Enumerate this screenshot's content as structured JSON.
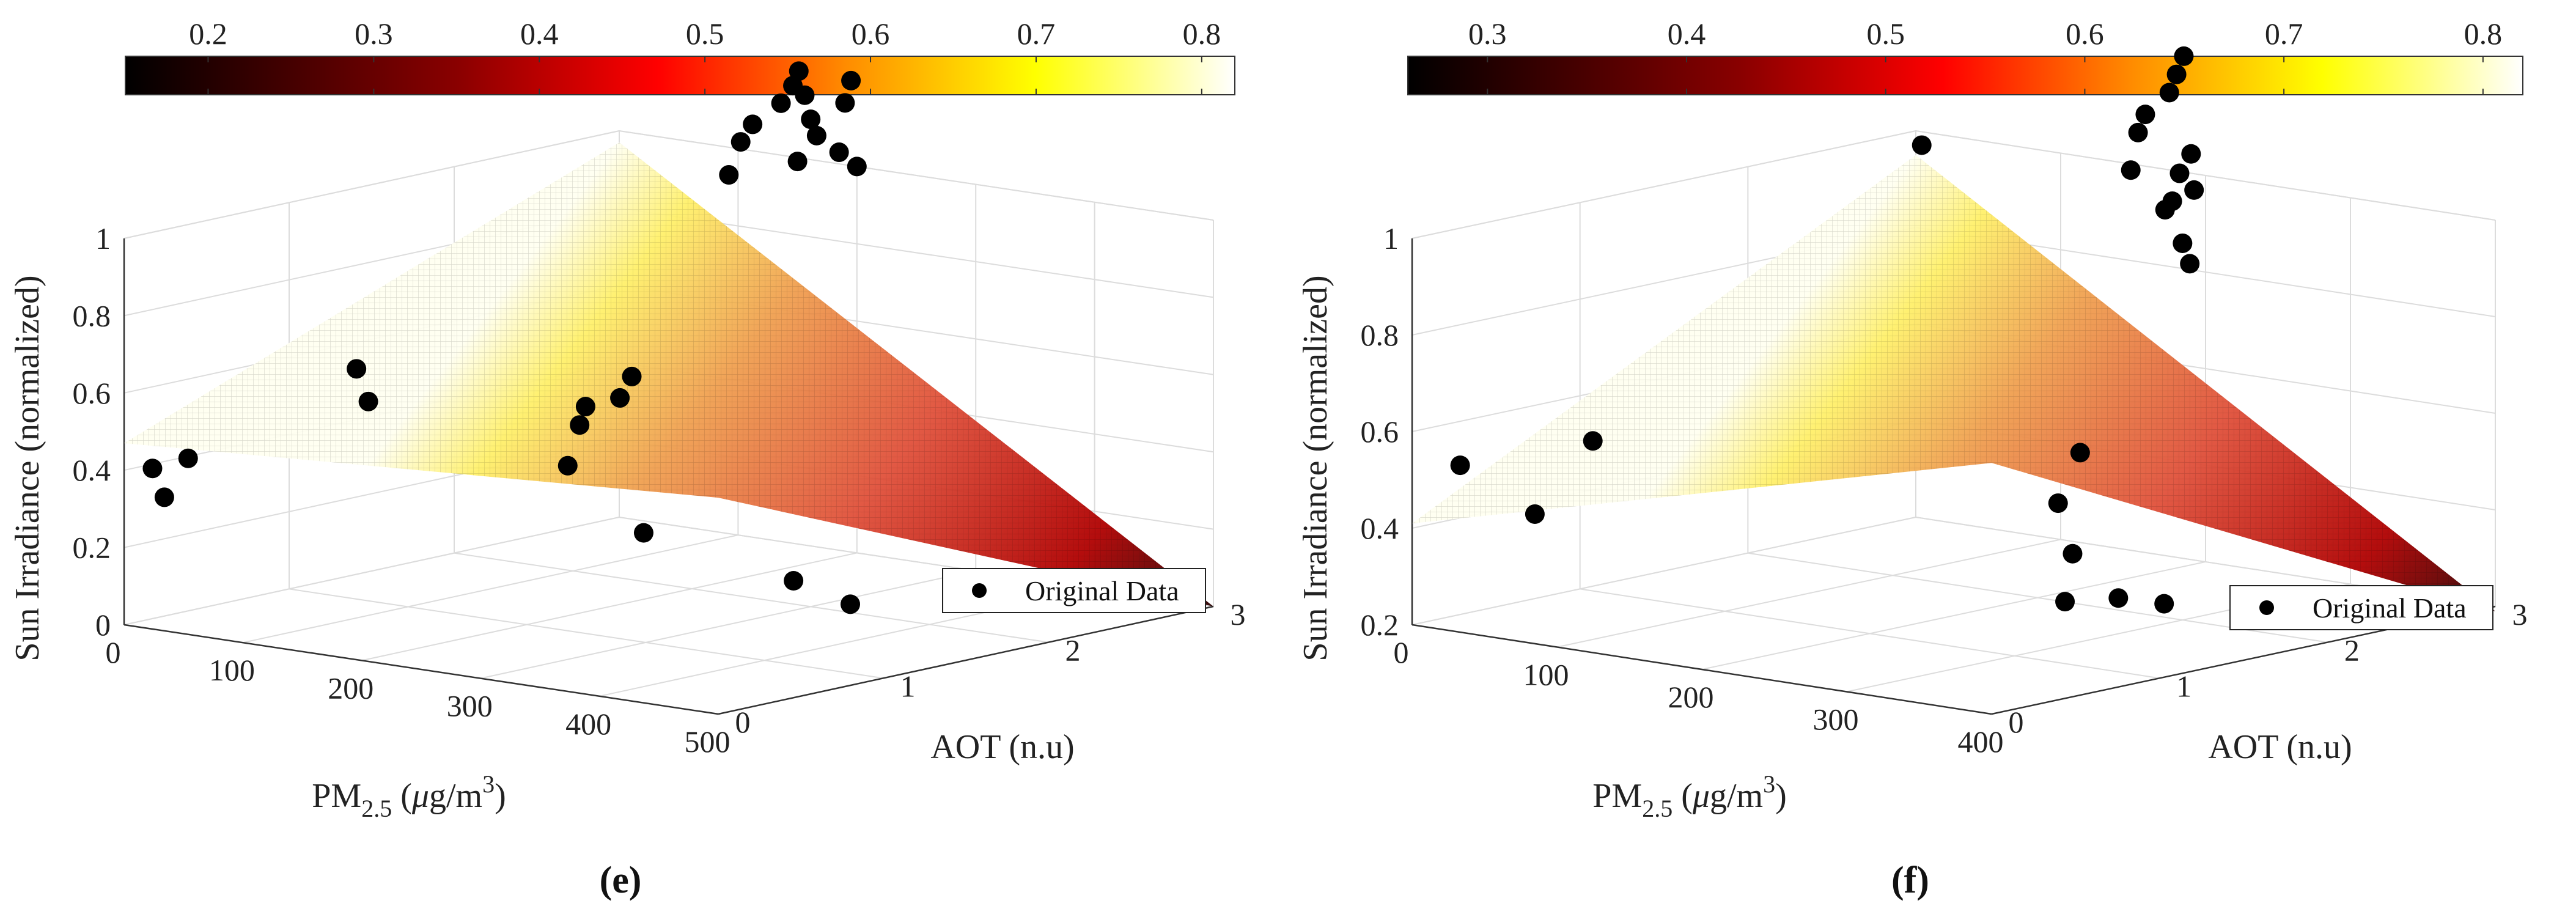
{
  "chart_data": [
    {
      "panel": "(e)",
      "type": "surface3d-scatter",
      "xlabel": {
        "base": "PM",
        "sub": "2.5",
        "rest": " (",
        "mu": "μ",
        "unit": "g/m",
        "sup": "3",
        "close": ")"
      },
      "ylabel": "AOT (n.u)",
      "zlabel": "Sun Irradiance (normalized)",
      "x_ticks": [
        "0",
        "100",
        "200",
        "300",
        "400",
        "500"
      ],
      "y_ticks": [
        "0",
        "1",
        "2",
        "3"
      ],
      "z_ticks": [
        "0",
        "0.2",
        "0.4",
        "0.6",
        "0.8",
        "1"
      ],
      "xlim": [
        0,
        500
      ],
      "ylim": [
        0,
        3
      ],
      "zlim": [
        0,
        1
      ],
      "colorbar": {
        "ticks": [
          "0.2",
          "0.3",
          "0.4",
          "0.5",
          "0.6",
          "0.7",
          "0.8"
        ],
        "range": [
          0.15,
          0.82
        ]
      },
      "surface_z_corners": {
        "x0_y0": 0.47,
        "x500_y0": 0.56,
        "x500_y3": 0.0,
        "x0_y3": 0.97
      },
      "legend": "Original Data",
      "points": [
        {
          "x": 10,
          "y": 0.1,
          "z": 0.4
        },
        {
          "x": 20,
          "y": 0.1,
          "z": 0.33
        },
        {
          "x": 40,
          "y": 0.1,
          "z": 0.44
        },
        {
          "x": 140,
          "y": 0.4,
          "z": 0.69
        },
        {
          "x": 150,
          "y": 0.4,
          "z": 0.61
        },
        {
          "x": 290,
          "y": 0.6,
          "z": 0.49
        },
        {
          "x": 300,
          "y": 0.6,
          "z": 0.6
        },
        {
          "x": 305,
          "y": 0.6,
          "z": 0.65
        },
        {
          "x": 320,
          "y": 0.7,
          "z": 0.67
        },
        {
          "x": 330,
          "y": 0.7,
          "z": 0.73
        },
        {
          "x": 340,
          "y": 0.7,
          "z": 0.33
        },
        {
          "x": 480,
          "y": 0.6,
          "z": 0.28
        },
        {
          "x": 500,
          "y": 0.8,
          "z": 0.21
        },
        {
          "x": 120,
          "y": 2.8,
          "z": 0.96
        },
        {
          "x": 130,
          "y": 2.8,
          "z": 1.05
        },
        {
          "x": 140,
          "y": 2.8,
          "z": 1.1
        },
        {
          "x": 150,
          "y": 2.9,
          "z": 1.15
        },
        {
          "x": 160,
          "y": 2.9,
          "z": 1.2
        },
        {
          "x": 165,
          "y": 2.9,
          "z": 1.24
        },
        {
          "x": 170,
          "y": 2.9,
          "z": 1.18
        },
        {
          "x": 175,
          "y": 2.9,
          "z": 1.12
        },
        {
          "x": 180,
          "y": 2.9,
          "z": 1.08
        },
        {
          "x": 185,
          "y": 3.0,
          "z": 1.03
        },
        {
          "x": 190,
          "y": 3.0,
          "z": 1.16
        },
        {
          "x": 195,
          "y": 3.0,
          "z": 1.22
        },
        {
          "x": 200,
          "y": 3.0,
          "z": 1.0
        },
        {
          "x": 150,
          "y": 3.0,
          "z": 0.99
        }
      ]
    },
    {
      "panel": "(f)",
      "type": "surface3d-scatter",
      "xlabel": {
        "base": "PM",
        "sub": "2.5",
        "rest": " (",
        "mu": "μ",
        "unit": "g/m",
        "sup": "3",
        "close": ")"
      },
      "ylabel": "AOT (n.u)",
      "zlabel": "Sun Irradiance (normalized)",
      "x_ticks": [
        "0",
        "100",
        "200",
        "300",
        "400"
      ],
      "y_ticks": [
        "0",
        "1",
        "2",
        "3"
      ],
      "z_ticks": [
        "0.2",
        "0.4",
        "0.6",
        "0.8",
        "1"
      ],
      "xlim": [
        0,
        400
      ],
      "ylim": [
        0,
        3
      ],
      "zlim": [
        0.2,
        1
      ],
      "colorbar": {
        "ticks": [
          "0.3",
          "0.4",
          "0.5",
          "0.6",
          "0.7",
          "0.8"
        ],
        "range": [
          0.26,
          0.82
        ]
      },
      "surface_z_corners": {
        "x0_y0": 0.41,
        "x400_y0": 0.72,
        "x400_y3": 0.19,
        "x0_y3": 0.95
      },
      "legend": "Original Data",
      "points": [
        {
          "x": 10,
          "y": 0.2,
          "z": 0.52
        },
        {
          "x": 50,
          "y": 0.3,
          "z": 0.43
        },
        {
          "x": 90,
          "y": 0.3,
          "z": 0.6
        },
        {
          "x": 120,
          "y": 2.0,
          "z": 1.1
        },
        {
          "x": 160,
          "y": 2.9,
          "z": 1.0
        },
        {
          "x": 165,
          "y": 2.9,
          "z": 1.08
        },
        {
          "x": 170,
          "y": 2.9,
          "z": 1.12
        },
        {
          "x": 175,
          "y": 3.0,
          "z": 1.16
        },
        {
          "x": 180,
          "y": 3.0,
          "z": 1.2
        },
        {
          "x": 185,
          "y": 3.0,
          "z": 1.24
        },
        {
          "x": 190,
          "y": 3.0,
          "z": 1.04
        },
        {
          "x": 230,
          "y": 2.5,
          "z": 0.98
        },
        {
          "x": 235,
          "y": 2.5,
          "z": 1.0
        },
        {
          "x": 240,
          "y": 2.5,
          "z": 1.06
        },
        {
          "x": 250,
          "y": 2.5,
          "z": 1.03
        },
        {
          "x": 300,
          "y": 2.0,
          "z": 0.98
        },
        {
          "x": 305,
          "y": 2.0,
          "z": 0.94
        },
        {
          "x": 330,
          "y": 1.0,
          "z": 0.53
        },
        {
          "x": 340,
          "y": 1.0,
          "z": 0.43
        },
        {
          "x": 380,
          "y": 0.7,
          "z": 0.68
        },
        {
          "x": 360,
          "y": 1.1,
          "z": 0.34
        },
        {
          "x": 380,
          "y": 1.2,
          "z": 0.33
        },
        {
          "x": 300,
          "y": 1.3,
          "z": 0.29
        }
      ]
    }
  ]
}
